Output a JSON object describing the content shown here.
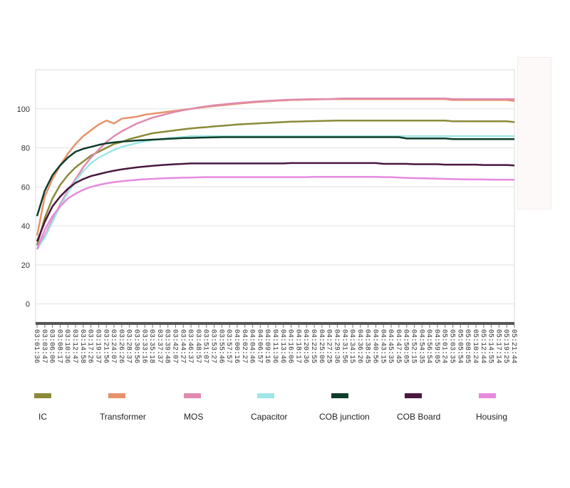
{
  "chart_data": {
    "type": "line",
    "title": "",
    "xlabel": "",
    "ylabel": "",
    "ylim": [
      -10,
      120
    ],
    "yticks": [
      0,
      20,
      40,
      60,
      80,
      100
    ],
    "grid": "horizontal",
    "legend_position": "bottom",
    "x": [
      "03:01:36",
      "03:03:47",
      "03:06:06",
      "03:08:17",
      "03:10:36",
      "03:12:47",
      "03:14:58",
      "03:17:26",
      "03:19:37",
      "03:21:56",
      "03:24:07",
      "03:26:26",
      "03:28:37",
      "03:30:56",
      "03:33:16",
      "03:35:18",
      "03:37:37",
      "03:39:48",
      "03:42:07",
      "03:44:27",
      "03:46:37",
      "03:48:57",
      "03:51:07",
      "03:53:27",
      "03:55:46",
      "03:57:57",
      "04:00:16",
      "04:02:27",
      "04:04:46",
      "04:06:57",
      "04:09:16",
      "04:11:36",
      "04:13:46",
      "04:16:06",
      "04:18:17",
      "04:20:36",
      "04:22:55",
      "04:25:06",
      "04:27:25",
      "04:29:36",
      "04:31:56",
      "04:34:15",
      "04:36:26",
      "04:38:45",
      "04:40:56",
      "04:43:15",
      "04:45:35",
      "04:47:45",
      "04:50:05",
      "04:52:15",
      "04:54:35",
      "04:56:54",
      "04:59:05",
      "05:01:24",
      "05:03:35",
      "05:05:54",
      "05:08:05",
      "05:10:24",
      "05:12:44",
      "05:14:55",
      "05:17:14",
      "05:19:25",
      "05:21:44"
    ],
    "series": [
      {
        "name": "IC",
        "color": "#8a8a3a",
        "values": [
          30,
          44,
          54,
          61,
          66,
          70,
          73,
          76,
          78,
          80,
          82,
          83,
          84.5,
          85.5,
          86.5,
          87.5,
          88,
          88.5,
          89,
          89.5,
          90,
          90.3,
          90.6,
          91,
          91.3,
          91.6,
          92,
          92.2,
          92.4,
          92.6,
          92.8,
          93,
          93.2,
          93.4,
          93.5,
          93.6,
          93.7,
          93.8,
          93.9,
          94,
          94,
          94,
          94,
          94,
          94,
          94,
          94,
          94,
          94,
          94,
          94,
          94,
          94,
          94,
          93.6,
          93.6,
          93.6,
          93.6,
          93.6,
          93.6,
          93.6,
          93.6,
          93.2
        ]
      },
      {
        "name": "Transformer",
        "color": "#e8926a",
        "values": [
          35,
          55,
          64,
          71,
          77,
          82,
          86,
          89,
          92,
          94,
          92.5,
          95,
          95.5,
          96,
          97,
          97.5,
          98,
          98.5,
          99,
          99.5,
          100,
          100.5,
          101,
          101.4,
          101.8,
          102.2,
          102.6,
          103,
          103.3,
          103.6,
          103.9,
          104.1,
          104.3,
          104.5,
          104.6,
          104.7,
          104.8,
          104.9,
          105,
          105,
          105,
          105,
          105,
          105,
          105,
          105,
          105,
          105,
          105,
          105,
          105,
          105,
          105,
          105,
          104.5,
          104.5,
          104.5,
          104.5,
          104.5,
          104.5,
          104.5,
          104.5,
          104
        ]
      },
      {
        "name": "MOS",
        "color": "#e08ab0",
        "values": [
          28,
          35,
          43,
          51,
          58,
          64,
          70,
          75,
          79,
          83,
          86,
          88.5,
          90.5,
          92.5,
          94,
          95.5,
          96.5,
          97.5,
          98.5,
          99.3,
          100,
          100.7,
          101.3,
          101.8,
          102.2,
          102.6,
          103,
          103.3,
          103.6,
          103.9,
          104.1,
          104.3,
          104.5,
          104.7,
          104.8,
          104.9,
          105,
          105,
          105,
          105.2,
          105.3,
          105.3,
          105.3,
          105.3,
          105.3,
          105.3,
          105.3,
          105.3,
          105.3,
          105.3,
          105.3,
          105.3,
          105.3,
          105.3,
          105,
          105,
          105,
          105,
          105,
          105,
          105,
          105,
          105
        ]
      },
      {
        "name": "Capacitor",
        "color": "#9ee6e6",
        "values": [
          28,
          34,
          42,
          50,
          57,
          63,
          68,
          72,
          75,
          77,
          79,
          80.5,
          81.5,
          82.5,
          83.3,
          84,
          84.5,
          85,
          85.3,
          85.6,
          86,
          86,
          86,
          86,
          86,
          86,
          86,
          86,
          86,
          86,
          86,
          86,
          86,
          86,
          86,
          86,
          86,
          86,
          86,
          86,
          86,
          86,
          86,
          86,
          86,
          86,
          86,
          86,
          86,
          86,
          86,
          86,
          86,
          86,
          86,
          86,
          86,
          86,
          86,
          86,
          86,
          86,
          86
        ]
      },
      {
        "name": "COB  junction",
        "color": "#0f3d2a",
        "values": [
          45,
          58,
          66,
          71,
          75,
          78,
          79.5,
          80.5,
          81.5,
          82.3,
          82.8,
          83.2,
          83.5,
          83.8,
          84,
          84.2,
          84.4,
          84.6,
          84.8,
          85,
          85.1,
          85.2,
          85.3,
          85.4,
          85.5,
          85.5,
          85.5,
          85.5,
          85.5,
          85.5,
          85.5,
          85.5,
          85.5,
          85.5,
          85.5,
          85.5,
          85.5,
          85.5,
          85.5,
          85.5,
          85.5,
          85.5,
          85.5,
          85.5,
          85.5,
          85.5,
          85.5,
          85.5,
          84.8,
          84.8,
          84.8,
          84.8,
          84.8,
          84.8,
          84.5,
          84.5,
          84.5,
          84.5,
          84.5,
          84.5,
          84.5,
          84.5,
          84.5
        ]
      },
      {
        "name": "COB Board",
        "color": "#4a1840",
        "values": [
          32,
          42,
          50,
          55,
          59,
          62,
          64,
          65.5,
          66.5,
          67.5,
          68.3,
          69,
          69.5,
          70,
          70.4,
          70.8,
          71.1,
          71.4,
          71.6,
          71.8,
          72,
          72,
          72,
          72,
          72,
          72,
          72,
          72,
          72,
          72,
          72,
          72,
          72,
          72.2,
          72.2,
          72.2,
          72.2,
          72.2,
          72.2,
          72.2,
          72.2,
          72.2,
          72.2,
          72.2,
          72.2,
          71.8,
          71.8,
          71.8,
          71.8,
          71.6,
          71.6,
          71.6,
          71.6,
          71.4,
          71.4,
          71.4,
          71.4,
          71.4,
          71.2,
          71.2,
          71.2,
          71.2,
          71
        ]
      },
      {
        "name": "Housing",
        "color": "#e68ae0",
        "values": [
          28,
          38,
          45,
          50,
          54,
          56.5,
          58.5,
          60,
          61,
          61.8,
          62.4,
          62.9,
          63.3,
          63.6,
          63.9,
          64.1,
          64.3,
          64.5,
          64.6,
          64.7,
          64.8,
          64.9,
          65,
          65,
          65,
          65,
          65,
          65,
          65,
          65,
          65,
          65,
          65,
          65,
          65,
          65,
          65.1,
          65.1,
          65.1,
          65.1,
          65.1,
          65.1,
          65.1,
          65.1,
          65.1,
          65,
          65,
          64.8,
          64.6,
          64.5,
          64.4,
          64.3,
          64.2,
          64.1,
          64,
          63.9,
          63.8,
          63.8,
          63.8,
          63.7,
          63.7,
          63.7,
          63.6
        ]
      }
    ]
  }
}
